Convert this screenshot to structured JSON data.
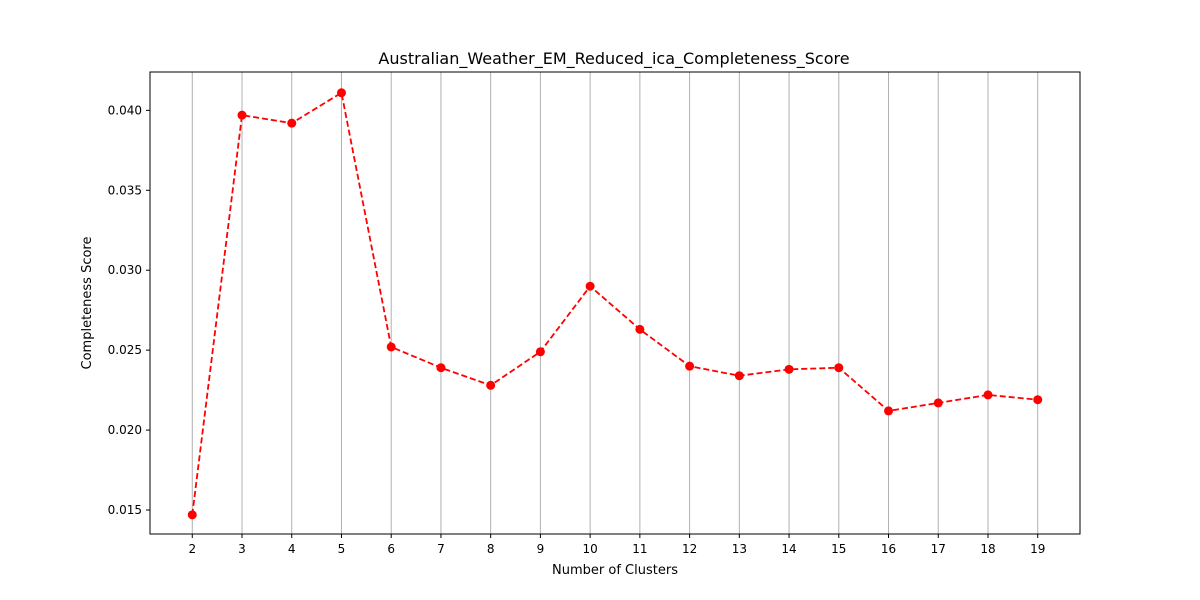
{
  "chart_data": {
    "type": "line",
    "title": "Australian_Weather_EM_Reduced_ica_Completeness_Score",
    "xlabel": "Number of Clusters",
    "ylabel": "Completeness Score",
    "x": [
      2,
      3,
      4,
      5,
      6,
      7,
      8,
      9,
      10,
      11,
      12,
      13,
      14,
      15,
      16,
      17,
      18,
      19
    ],
    "series": [
      {
        "name": "",
        "color": "#ff0000",
        "line_style": "dashed",
        "marker": "circle",
        "values": [
          0.0147,
          0.0397,
          0.0392,
          0.0411,
          0.0252,
          0.0239,
          0.0228,
          0.0249,
          0.029,
          0.0263,
          0.024,
          0.0234,
          0.0238,
          0.0239,
          0.0212,
          0.0217,
          0.0222,
          0.0219
        ]
      }
    ],
    "xlim": [
      1.15,
      19.85
    ],
    "ylim": [
      0.0135,
      0.0424
    ],
    "yticks": [
      "0.015",
      "0.020",
      "0.025",
      "0.030",
      "0.035",
      "0.040"
    ],
    "xticks": [
      "2",
      "3",
      "4",
      "5",
      "6",
      "7",
      "8",
      "9",
      "10",
      "11",
      "12",
      "13",
      "14",
      "15",
      "16",
      "17",
      "18",
      "19"
    ],
    "grid": "vertical"
  }
}
